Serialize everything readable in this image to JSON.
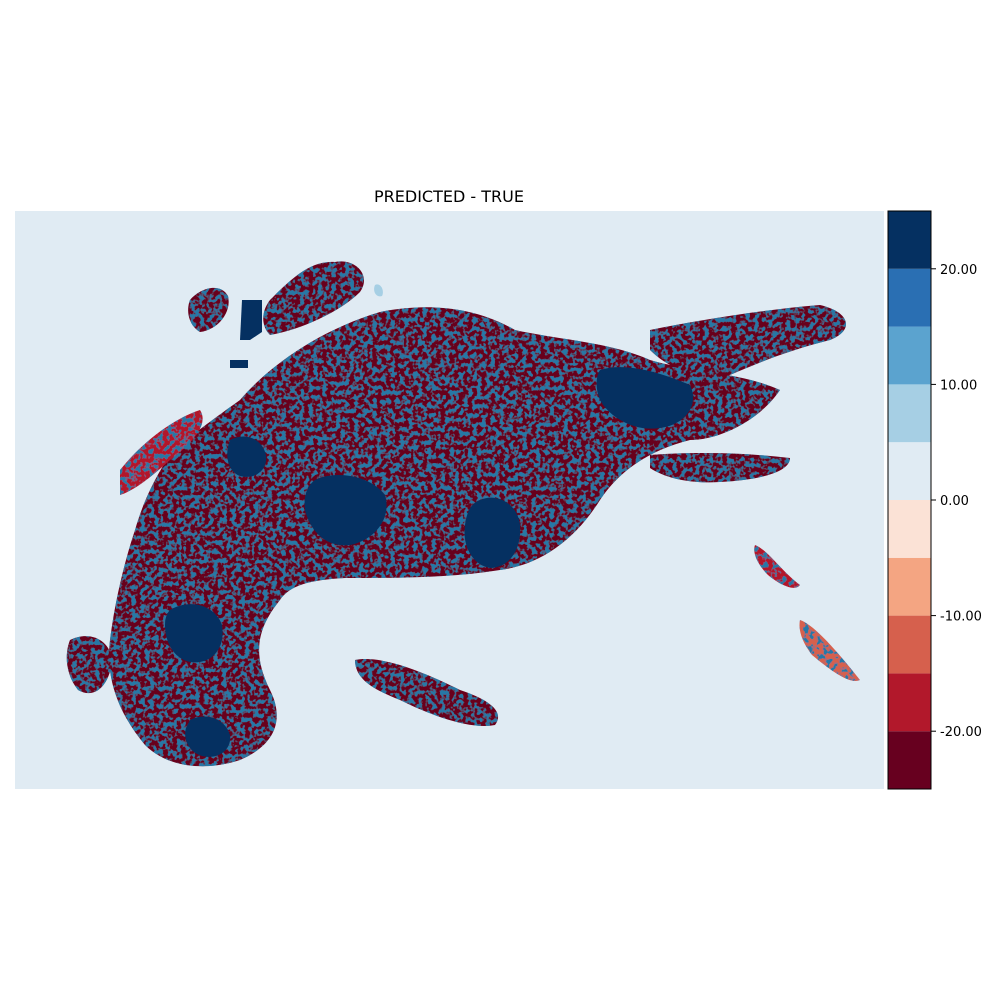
{
  "chart_data": {
    "type": "heatmap",
    "title": "PREDICTED - TRUE",
    "xlabel": "",
    "ylabel": "",
    "axes_visible": false,
    "grid": false,
    "colormap": "RdBu (diverging, 10 discrete levels)",
    "colorbar": {
      "position": "right",
      "range": [
        -25,
        25
      ],
      "levels": [
        -25,
        -20,
        -15,
        -10,
        -5,
        0,
        5,
        10,
        15,
        20,
        25
      ],
      "colors": [
        "#67001f",
        "#b2182b",
        "#d6604d",
        "#f4a582",
        "#fbe2d6",
        "#e0ebf3",
        "#a6cfe4",
        "#5ba3cf",
        "#2a6fb3",
        "#053061"
      ],
      "ticks": [
        -20,
        -10,
        0,
        10,
        20
      ],
      "tick_labels": [
        "-20.00",
        "-10.00",
        "0.00",
        "10.00",
        "20.00"
      ]
    },
    "background_level_color": "#e0ebf3"
  }
}
